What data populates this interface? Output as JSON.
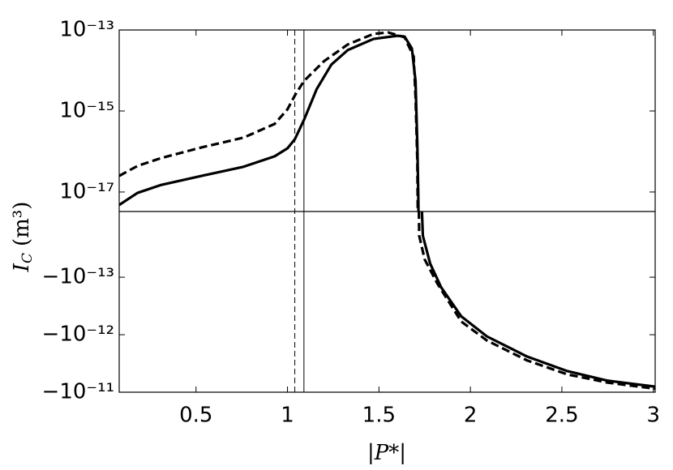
{
  "chart_data": {
    "type": "line",
    "yscale": "symlog",
    "xlabel": "|P*|",
    "ylabel": "I",
    "ylabel_subscript": "C",
    "ylabel_unit": "(m³)",
    "xlim": [
      0.08,
      3.01
    ],
    "xticks": [
      0.5,
      1,
      1.5,
      2,
      2.5,
      3
    ],
    "ylim_positive": [
      3.3e-18,
      1e-13
    ],
    "ylim_negative": [
      -1e-11,
      -7.2e-15
    ],
    "yticks": [
      {
        "value": 1e-13,
        "label": "10⁻¹³"
      },
      {
        "value": 1e-15,
        "label": "10⁻¹⁵"
      },
      {
        "value": 1e-17,
        "label": "10⁻¹⁷"
      },
      {
        "value": -1e-13,
        "label": "−10⁻¹³"
      },
      {
        "value": -1e-12,
        "label": "−10⁻¹²"
      },
      {
        "value": -1e-11,
        "label": "−10⁻¹¹"
      }
    ],
    "vlines": [
      {
        "x": 1.04,
        "style": "dashed"
      },
      {
        "x": 1.09,
        "style": "solid"
      }
    ],
    "series": [
      {
        "color": "#000000",
        "style": "solid",
        "x": [
          0.08,
          0.18,
          0.31,
          0.53,
          0.76,
          0.93,
          1.0,
          1.04,
          1.09,
          1.16,
          1.24,
          1.33,
          1.47,
          1.6,
          1.64,
          1.68,
          1.7,
          1.71,
          1.715,
          1.72,
          1.725,
          1.74,
          1.78,
          1.84,
          1.95,
          2.09,
          2.31,
          2.53,
          2.75,
          3.01
        ],
        "values": [
          4.8e-18,
          9.5e-18,
          1.5e-17,
          2.5e-17,
          4.2e-17,
          7.6e-17,
          1.2e-16,
          2e-16,
          6e-16,
          3.5e-15,
          1.4e-14,
          3.2e-14,
          6e-14,
          7.2e-14,
          6.9e-14,
          3.5e-14,
          5.5e-15,
          1.4e-16,
          8.7e-18,
          1e-19,
          -1e-15,
          -1.9e-14,
          -5.8e-14,
          -1.5e-13,
          -4.8e-13,
          -1.07e-12,
          -2.4e-12,
          -4.3e-12,
          -6.3e-12,
          -8e-12
        ]
      },
      {
        "color": "#000000",
        "style": "dashed",
        "x": [
          0.08,
          0.18,
          0.31,
          0.53,
          0.76,
          0.93,
          1.0,
          1.04,
          1.09,
          1.2,
          1.33,
          1.47,
          1.55,
          1.64,
          1.69,
          1.7,
          1.71,
          1.715,
          1.715,
          1.72,
          1.75,
          1.82,
          1.95,
          2.09,
          2.31,
          2.53,
          2.75,
          3.01
        ],
        "values": [
          2.5e-17,
          4.4e-17,
          6.9e-17,
          1.26e-16,
          2.2e-16,
          4.8e-16,
          1.1e-15,
          2.4e-15,
          5.5e-15,
          1.7e-14,
          4.4e-14,
          8e-14,
          8.7e-14,
          6.6e-14,
          2.2e-14,
          2.2e-15,
          5.5e-17,
          1e-19,
          -1e-15,
          -1.9e-14,
          -4.9e-14,
          -1.3e-13,
          -5.9e-13,
          -1.26e-12,
          -2.8e-12,
          -4.9e-12,
          -6.8e-12,
          -8.7e-12
        ]
      }
    ]
  }
}
